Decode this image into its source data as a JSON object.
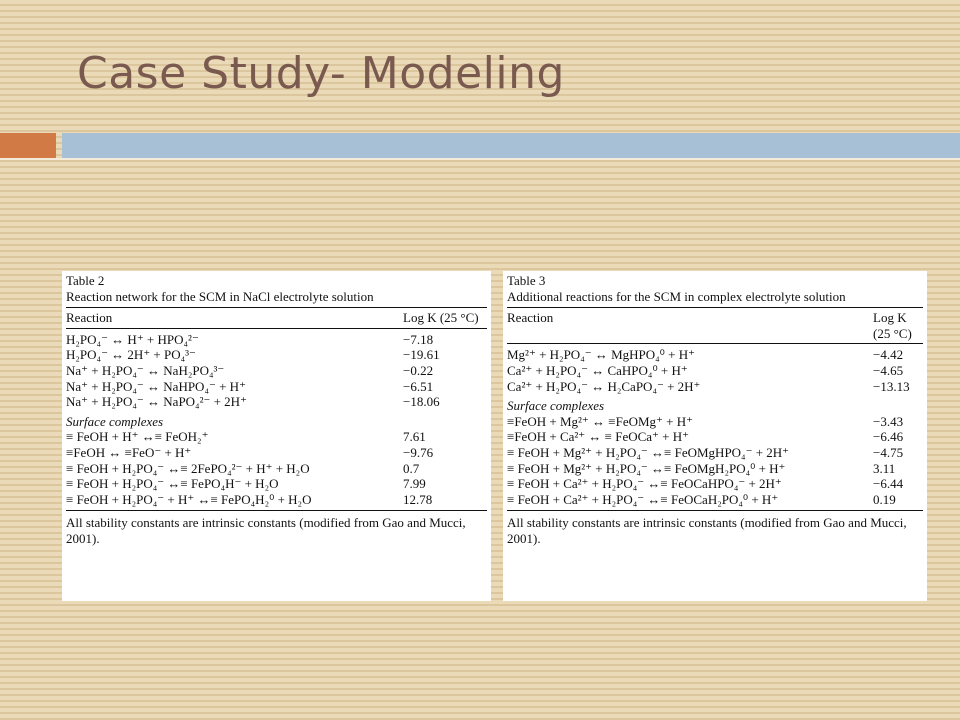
{
  "slide": {
    "title": "Case Study- Modeling"
  },
  "colors": {
    "accent_orange": "#d27a45",
    "accent_blue": "#a8c0d6",
    "title": "#7a5a4f"
  },
  "table2": {
    "label": "Table 2",
    "caption": "Reaction network for the SCM in NaCl electrolyte solution",
    "col_reaction": "Reaction",
    "col_logk": "Log K (25 °C)",
    "rows": [
      {
        "reaction": "H₂PO₄⁻ ↔ H⁺ + HPO₄²⁻",
        "logk": "−7.18"
      },
      {
        "reaction": "H₂PO₄⁻ ↔ 2H⁺ + PO₄³⁻",
        "logk": "−19.61"
      },
      {
        "reaction": "Na⁺ + H₂PO₄⁻ ↔ NaH₂PO₄³⁻",
        "logk": "−0.22"
      },
      {
        "reaction": "Na⁺ + H₂PO₄⁻ ↔ NaHPO₄⁻ + H⁺",
        "logk": "−6.51"
      },
      {
        "reaction": "Na⁺ + H₂PO₄⁻ ↔ NaPO₄²⁻ + 2H⁺",
        "logk": "−18.06"
      }
    ],
    "section": "Surface complexes",
    "surface_rows": [
      {
        "reaction": "≡ FeOH + H⁺ ↔≡ FeOH₂⁺",
        "logk": "7.61"
      },
      {
        "reaction": "≡FeOH ↔ ≡FeO⁻ + H⁺",
        "logk": "−9.76"
      },
      {
        "reaction": "≡ FeOH + H₂PO₄⁻ ↔≡ 2FePO₄²⁻ + H⁺ + H₂O",
        "logk": "0.7"
      },
      {
        "reaction": "≡ FeOH + H₂PO₄⁻ ↔≡ FePO₄H⁻ + H₂O",
        "logk": "7.99"
      },
      {
        "reaction": "≡ FeOH + H₂PO₄⁻ + H⁺ ↔≡ FePO₄H₂⁰ + H₂O",
        "logk": "12.78"
      }
    ],
    "footnote": "All stability constants are intrinsic constants (modified from Gao and Mucci, 2001)."
  },
  "table3": {
    "label": "Table 3",
    "caption": "Additional reactions for the SCM in complex electrolyte solution",
    "col_reaction": "Reaction",
    "col_logk_1": "Log K",
    "col_logk_2": "(25 °C)",
    "rows": [
      {
        "reaction": "Mg²⁺ + H₂PO₄⁻ ↔ MgHPO₄⁰ + H⁺",
        "logk": "−4.42"
      },
      {
        "reaction": "Ca²⁺ + H₂PO₄⁻ ↔ CaHPO₄⁰ + H⁺",
        "logk": "−4.65"
      },
      {
        "reaction": "Ca²⁺ + H₂PO₄⁻ ↔ H₂CaPO₄⁻ + 2H⁺",
        "logk": "−13.13"
      }
    ],
    "section": "Surface complexes",
    "surface_rows": [
      {
        "reaction": "≡FeOH + Mg²⁺ ↔ ≡FeOMg⁺ + H⁺",
        "logk": "−3.43"
      },
      {
        "reaction": "≡FeOH + Ca²⁺ ↔ ≡ FeOCa⁺ + H⁺",
        "logk": "−6.46"
      },
      {
        "reaction": "≡ FeOH + Mg²⁺ + H₂PO₄⁻ ↔≡ FeOMgHPO₄⁻ + 2H⁺",
        "logk": "−4.75"
      },
      {
        "reaction": "≡ FeOH + Mg²⁺ + H₂PO₄⁻ ↔≡ FeOMgH₂PO₄⁰ + H⁺",
        "logk": "3.11"
      },
      {
        "reaction": "≡ FeOH + Ca²⁺ + H₂PO₄⁻ ↔≡ FeOCaHPO₄⁻ + 2H⁺",
        "logk": "−6.44"
      },
      {
        "reaction": "≡ FeOH + Ca²⁺ + H₂PO₄⁻ ↔≡ FeOCaH₂PO₄⁰ + H⁺",
        "logk": "0.19"
      }
    ],
    "footnote": "All stability constants are intrinsic constants (modified from Gao and Mucci, 2001)."
  }
}
